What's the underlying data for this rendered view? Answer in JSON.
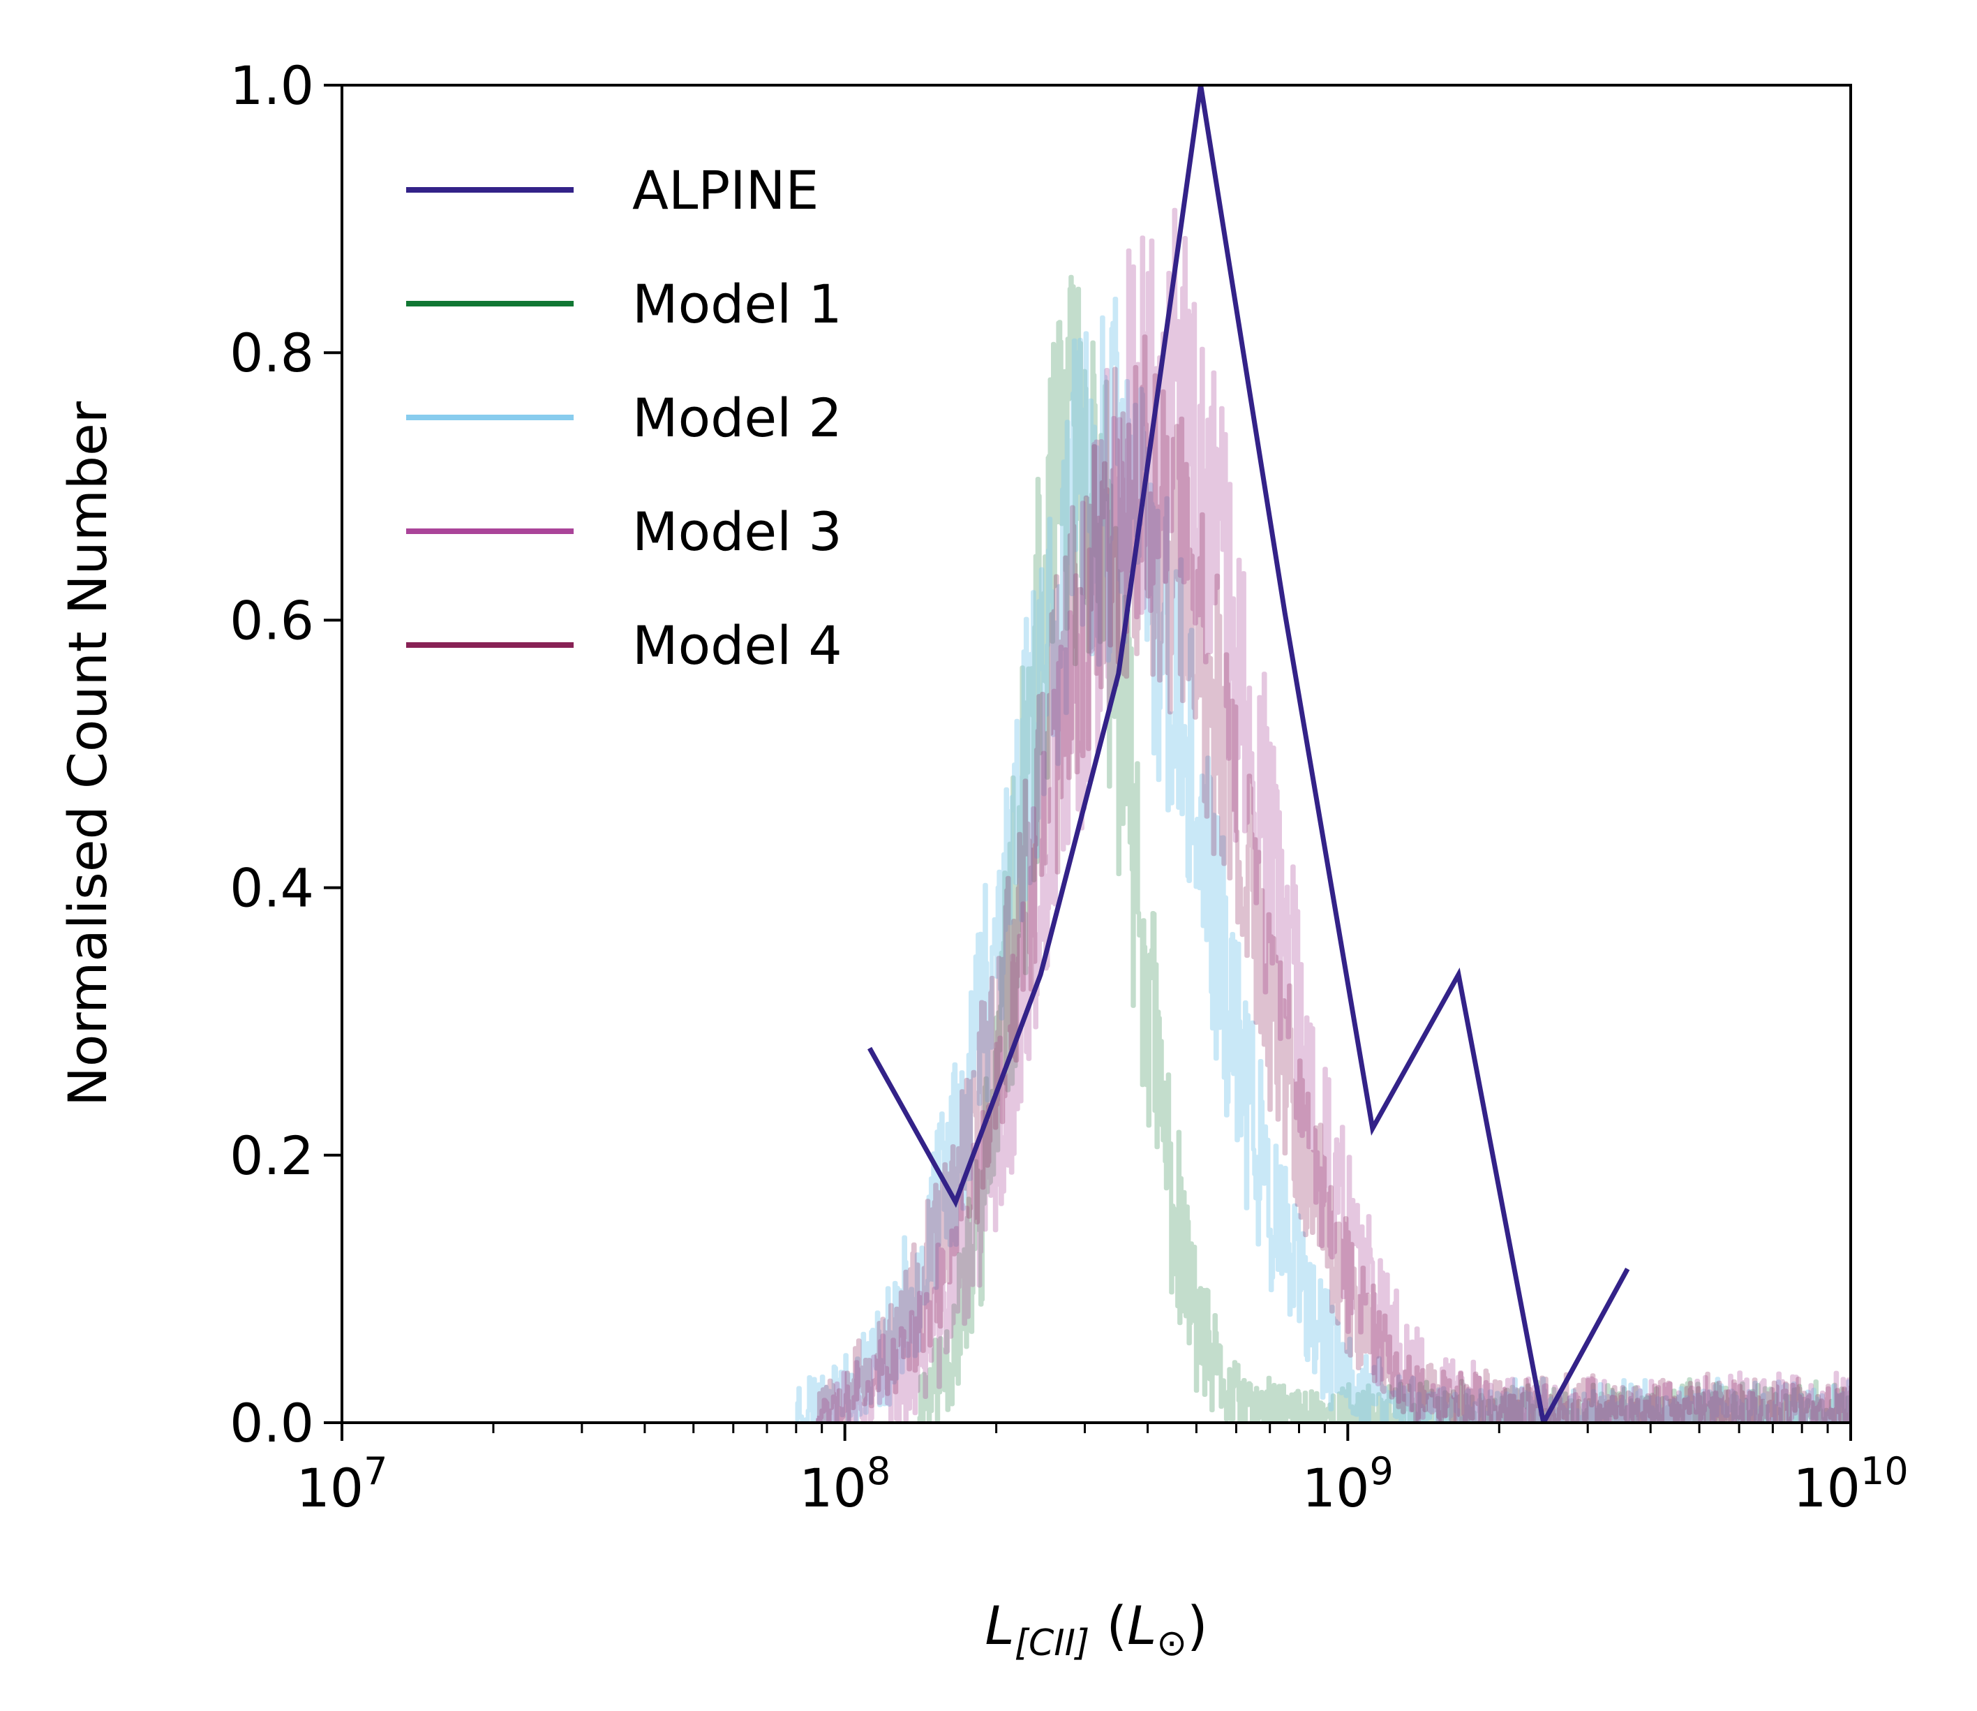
{
  "chart_data": {
    "type": "line",
    "xscale": "log",
    "xlim": [
      10000000,
      10000000000
    ],
    "ylim": [
      0,
      1
    ],
    "xlabel": "L[CII] (L⊙)",
    "xlabel_parts": {
      "main": "L",
      "sub": "[CII]",
      "unit_open": " (",
      "unit": "L",
      "unit_sub": "⊙",
      "unit_close": ")"
    },
    "ylabel": "Normalised Count Number",
    "grid": false,
    "legend_position": "top-left",
    "x_ticks": [
      {
        "value": 10000000,
        "base": "10",
        "exp": "7"
      },
      {
        "value": 100000000,
        "base": "10",
        "exp": "8"
      },
      {
        "value": 1000000000,
        "base": "10",
        "exp": "9"
      },
      {
        "value": 10000000000,
        "base": "10",
        "exp": "10"
      }
    ],
    "y_ticks": [
      {
        "value": 0.0,
        "label": "0.0"
      },
      {
        "value": 0.2,
        "label": "0.2"
      },
      {
        "value": 0.4,
        "label": "0.4"
      },
      {
        "value": 0.6,
        "label": "0.6"
      },
      {
        "value": 0.8,
        "label": "0.8"
      },
      {
        "value": 1.0,
        "label": "1.0"
      }
    ],
    "series": [
      {
        "name": "ALPINE",
        "color": "#332288",
        "opacity": 1.0,
        "style": "line",
        "x": [
          112000000,
          166000000,
          245000000,
          350000000,
          510000000,
          750000000,
          1120000000,
          1660000000,
          2450000000,
          3600000000
        ],
        "y": [
          0.28,
          0.165,
          0.335,
          0.56,
          1.0,
          0.605,
          0.22,
          0.335,
          0.0,
          0.115
        ]
      },
      {
        "name": "Model 1",
        "color": "#117733",
        "opacity": 0.25,
        "style": "noisy",
        "peak_x": 290000000,
        "peak_y": 0.72,
        "sigma_dex": 0.11,
        "x_min": 140000000,
        "x_max": 10000000000,
        "noise": 0.16,
        "tail_level": 0.01,
        "seed": 11
      },
      {
        "name": "Model 2",
        "color": "#88CCEE",
        "opacity": 0.45,
        "style": "noisy",
        "peak_x": 330000000,
        "peak_y": 0.7,
        "sigma_dex": 0.19,
        "x_min": 80000000,
        "x_max": 10000000000,
        "noise": 0.14,
        "tail_level": 0.015,
        "seed": 23
      },
      {
        "name": "Model 3",
        "color": "#AA4499",
        "opacity": 0.3,
        "style": "noisy",
        "peak_x": 420000000,
        "peak_y": 0.75,
        "sigma_dex": 0.2,
        "x_min": 88000000,
        "x_max": 10000000000,
        "noise": 0.15,
        "tail_level": 0.02,
        "seed": 37
      },
      {
        "name": "Model 4",
        "color": "#882255",
        "opacity": 0.28,
        "style": "noisy",
        "peak_x": 380000000,
        "peak_y": 0.68,
        "sigma_dex": 0.21,
        "x_min": 88000000,
        "x_max": 10000000000,
        "noise": 0.13,
        "tail_level": 0.02,
        "seed": 53
      }
    ]
  }
}
